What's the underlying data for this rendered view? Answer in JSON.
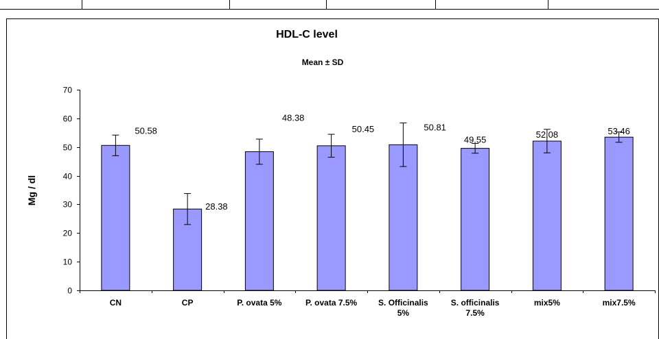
{
  "chart_data": {
    "type": "bar",
    "title": "HDL-C level",
    "subtitle": "Mean ± SD",
    "ylabel": "Mg / dl",
    "xlabel": "",
    "ylim": [
      0,
      70
    ],
    "yticks": [
      0,
      10,
      20,
      30,
      40,
      50,
      60,
      70
    ],
    "ytick_labels": [
      "0",
      "10",
      "20",
      "30",
      "40",
      "50",
      "60",
      "70"
    ],
    "grid": false,
    "legend": "none",
    "bar_color": "#9999ff",
    "categories": [
      [
        "CN"
      ],
      [
        "CP"
      ],
      [
        "P. ovata 5%"
      ],
      [
        "P. ovata 7.5%"
      ],
      [
        "S. Officinalis",
        "5%"
      ],
      [
        "S. officinalis",
        "7.5%"
      ],
      [
        "mix5%"
      ],
      [
        "mix7.5%"
      ]
    ],
    "values": [
      50.58,
      28.38,
      48.38,
      50.45,
      50.81,
      49.55,
      52.08,
      53.46
    ],
    "value_labels": [
      "50.58",
      "28.38",
      "48.38",
      "50.45",
      "50.81",
      "49.55",
      "52.08",
      "53.46"
    ],
    "error": [
      3.6,
      5.4,
      4.4,
      4.0,
      7.6,
      1.7,
      4.1,
      1.8
    ]
  }
}
